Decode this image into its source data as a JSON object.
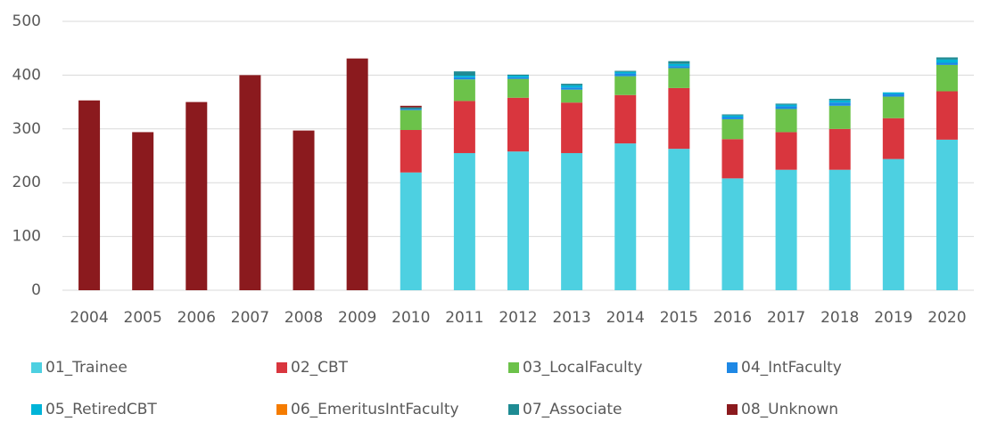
{
  "chart_data": {
    "type": "stacked_bar",
    "categories": [
      "2004",
      "2005",
      "2006",
      "2007",
      "2008",
      "2009",
      "2010",
      "2011",
      "2012",
      "2013",
      "2014",
      "2015",
      "2016",
      "2017",
      "2018",
      "2019",
      "2020"
    ],
    "series": [
      {
        "name": "01_Trainee",
        "color": "#4dd0e1",
        "values": [
          0,
          0,
          0,
          0,
          0,
          0,
          219,
          255,
          258,
          255,
          273,
          263,
          208,
          224,
          224,
          244,
          280
        ]
      },
      {
        "name": "02_CBT",
        "color": "#d9363e",
        "values": [
          0,
          0,
          0,
          0,
          0,
          0,
          79,
          97,
          100,
          94,
          90,
          113,
          73,
          70,
          76,
          76,
          90
        ]
      },
      {
        "name": "03_LocalFaculty",
        "color": "#6cc24a",
        "values": [
          0,
          0,
          0,
          0,
          0,
          0,
          37,
          40,
          35,
          24,
          35,
          37,
          37,
          43,
          43,
          40,
          49
        ]
      },
      {
        "name": "04_IntFaculty",
        "color": "#1e88e5",
        "values": [
          0,
          0,
          0,
          0,
          0,
          0,
          2,
          4,
          3,
          4,
          5,
          4,
          4,
          5,
          6,
          5,
          4
        ]
      },
      {
        "name": "05_RetiredCBT",
        "color": "#00b4d8",
        "values": [
          0,
          0,
          0,
          0,
          0,
          0,
          0,
          3,
          3,
          4,
          3,
          4,
          3,
          3,
          4,
          3,
          6
        ]
      },
      {
        "name": "06_EmeritusIntFaculty",
        "color": "#f57c00",
        "values": [
          0,
          0,
          0,
          0,
          0,
          0,
          0,
          0,
          0,
          0,
          0,
          0,
          0,
          0,
          0,
          0,
          0
        ]
      },
      {
        "name": "07_Associate",
        "color": "#1e8b93",
        "values": [
          0,
          0,
          0,
          0,
          0,
          0,
          3,
          8,
          2,
          3,
          2,
          5,
          2,
          2,
          3,
          0,
          4
        ]
      },
      {
        "name": "08_Unknown",
        "color": "#8b1a1e",
        "values": [
          353,
          294,
          350,
          400,
          297,
          431,
          3,
          0,
          0,
          0,
          0,
          0,
          0,
          0,
          0,
          0,
          0
        ]
      }
    ],
    "ylim": [
      0,
      500
    ],
    "yticks": [
      0,
      100,
      200,
      300,
      400,
      500
    ],
    "grid": true
  }
}
